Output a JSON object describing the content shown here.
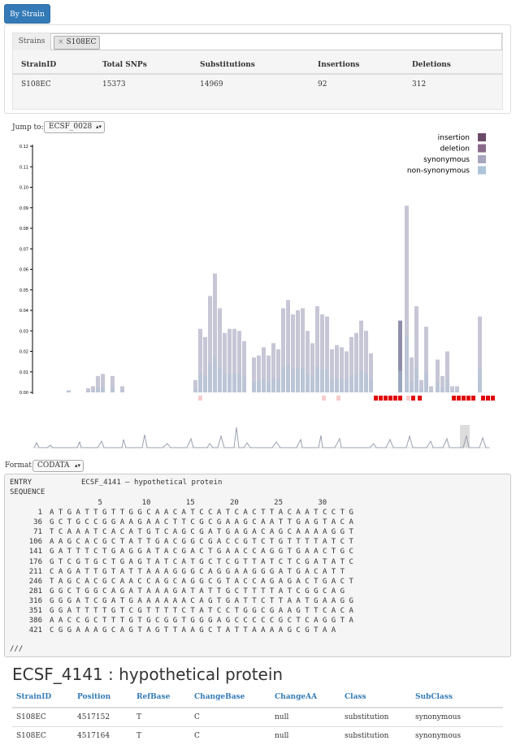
{
  "toolbar": {
    "by_strain_label": "By Strain"
  },
  "strains": {
    "addon_label": "Strains",
    "selected_tag": "S108EC",
    "remove_symbol": "×"
  },
  "summary_table": {
    "headers": [
      "StrainID",
      "Total SNPs",
      "Substitutions",
      "Insertions",
      "Deletions"
    ],
    "rows": [
      [
        "S108EC",
        "15373",
        "14969",
        "92",
        "312"
      ]
    ]
  },
  "jump_to": {
    "label": "Jump to:",
    "selected": "ECSF_0028"
  },
  "chart_data": {
    "type": "bar",
    "stacked": true,
    "ylim": [
      0,
      0.12
    ],
    "y_ticks": [
      "0.00",
      "0.01",
      "0.02",
      "0.03",
      "0.04",
      "0.05",
      "0.06",
      "0.07",
      "0.08",
      "0.09",
      "0.10",
      "0.11",
      "0.12"
    ],
    "legend": [
      "insertion",
      "deletion",
      "synonymous",
      "non-synonymous"
    ],
    "legend_position": "top-right",
    "colors": {
      "insertion": "#6b4a6a",
      "deletion": "#8a6a8a",
      "synonymous": "#a6a6c0",
      "non-synonymous": "#aec4d8",
      "bar": "#c6c6d6",
      "marker_strong": "#e00000",
      "marker_faint": "#f7cccc"
    },
    "bars": [
      {
        "x": 82,
        "v": 0.001
      },
      {
        "x": 106,
        "v": 0.002
      },
      {
        "x": 112,
        "v": 0.003
      },
      {
        "x": 118,
        "v": 0.008
      },
      {
        "x": 124,
        "v": 0.009
      },
      {
        "x": 136,
        "v": 0.008
      },
      {
        "x": 148,
        "v": 0.003
      },
      {
        "x": 238,
        "v": 0.006
      },
      {
        "x": 244,
        "v": 0.031
      },
      {
        "x": 250,
        "v": 0.027
      },
      {
        "x": 256,
        "v": 0.047
      },
      {
        "x": 262,
        "v": 0.058
      },
      {
        "x": 268,
        "v": 0.041
      },
      {
        "x": 274,
        "v": 0.029
      },
      {
        "x": 280,
        "v": 0.031
      },
      {
        "x": 286,
        "v": 0.031
      },
      {
        "x": 292,
        "v": 0.03
      },
      {
        "x": 298,
        "v": 0.025
      },
      {
        "x": 310,
        "v": 0.017
      },
      {
        "x": 316,
        "v": 0.018
      },
      {
        "x": 322,
        "v": 0.022
      },
      {
        "x": 328,
        "v": 0.018
      },
      {
        "x": 334,
        "v": 0.024
      },
      {
        "x": 340,
        "v": 0.021
      },
      {
        "x": 346,
        "v": 0.041
      },
      {
        "x": 352,
        "v": 0.045
      },
      {
        "x": 358,
        "v": 0.038
      },
      {
        "x": 364,
        "v": 0.04
      },
      {
        "x": 370,
        "v": 0.041
      },
      {
        "x": 376,
        "v": 0.03
      },
      {
        "x": 382,
        "v": 0.024
      },
      {
        "x": 388,
        "v": 0.042
      },
      {
        "x": 394,
        "v": 0.038
      },
      {
        "x": 400,
        "v": 0.037
      },
      {
        "x": 406,
        "v": 0.021
      },
      {
        "x": 412,
        "v": 0.023
      },
      {
        "x": 418,
        "v": 0.022
      },
      {
        "x": 424,
        "v": 0.02
      },
      {
        "x": 430,
        "v": 0.027
      },
      {
        "x": 436,
        "v": 0.029
      },
      {
        "x": 442,
        "v": 0.035
      },
      {
        "x": 448,
        "v": 0.03
      },
      {
        "x": 454,
        "v": 0.019
      },
      {
        "x": 490,
        "v": 0.035,
        "dark": true
      },
      {
        "x": 498,
        "v": 0.091
      },
      {
        "x": 504,
        "v": 0.017
      },
      {
        "x": 510,
        "v": 0.042
      },
      {
        "x": 516,
        "v": 0.006
      },
      {
        "x": 522,
        "v": 0.032
      },
      {
        "x": 528,
        "v": 0.003
      },
      {
        "x": 536,
        "v": 0.016
      },
      {
        "x": 542,
        "v": 0.008
      },
      {
        "x": 548,
        "v": 0.02
      },
      {
        "x": 554,
        "v": 0.003
      },
      {
        "x": 560,
        "v": 0.003
      },
      {
        "x": 588,
        "v": 0.037
      }
    ],
    "markers_strong": [
      460,
      466,
      472,
      478,
      484,
      490,
      506,
      514,
      556,
      562,
      568,
      574,
      580,
      592,
      598,
      604
    ],
    "markers_faint": [
      244,
      396,
      414,
      500
    ]
  },
  "format": {
    "label": "Format:",
    "selected": "CODATA"
  },
  "sequence": {
    "entry_label": "ENTRY",
    "entry_value": "ECSF_4141 — hypothetical protein",
    "sequence_label": "SEQUENCE",
    "ruler": "             5         10        15        20        25        30",
    "lines": [
      {
        "n": "1",
        "s": "A T G A T T G T T G G C A A C A T C C A T C A C T T A C A A T C C T G"
      },
      {
        "n": "36",
        "s": "G C T G C C G G A A G A A C T T C G C G A A G C A A T T G A G T A C A"
      },
      {
        "n": "71",
        "s": "T C A A A T C A C A T G T C A G C G A T G A G A C A G C A A A A G G T"
      },
      {
        "n": "106",
        "s": "A A G C A C G C T A T T G A C G G C G A C C G T C T G T T T T A T C T"
      },
      {
        "n": "141",
        "s": "G A T T T C T G A G G A T A C G A C T G A A C C A G G T G A A C T G C"
      },
      {
        "n": "176",
        "s": "G T C G T G C T G A G T A T C A T G C T C G T T A T C T C G A T A T C"
      },
      {
        "n": "211",
        "s": "C A G A T T G T A T T A A A G G G C A G G A A G G G A T G A C A T T"
      },
      {
        "n": "246",
        "s": "T A G C A C G C A A C C A G C A G G C G T A C C A G A G A C T G A C T"
      },
      {
        "n": "281",
        "s": "G G C T G G C A G A T A A A G A T A T T G C T T T T A T C G G C A G"
      },
      {
        "n": "316",
        "s": "G G G A T C G A T G A A A A A A C A G T G A T T C T T A A T G A A G G"
      },
      {
        "n": "351",
        "s": "G G A T T T T G T C G T T T T C T A T C C T G G C G A A G T T C A C A"
      },
      {
        "n": "386",
        "s": "A A C C G C T T T G T G C G G T G G G A G C C C C C G C T C A G G T A"
      },
      {
        "n": "421",
        "s": "C G G A A A G C A G T A G T T A A G C T A T T A A A A G C G T A A"
      }
    ],
    "end_marker": "///"
  },
  "protein": {
    "title": "ECSF_4141 : hypothetical protein"
  },
  "snp_table": {
    "headers": [
      "StrainID",
      "Position",
      "RefBase",
      "ChangeBase",
      "ChangeAA",
      "Class",
      "SubClass"
    ],
    "rows": [
      [
        "S108EC",
        "4517152",
        "T",
        "C",
        "null",
        "substitution",
        "synonymous"
      ],
      [
        "S108EC",
        "4517164",
        "T",
        "C",
        "null",
        "substitution",
        "synonymous"
      ]
    ]
  }
}
